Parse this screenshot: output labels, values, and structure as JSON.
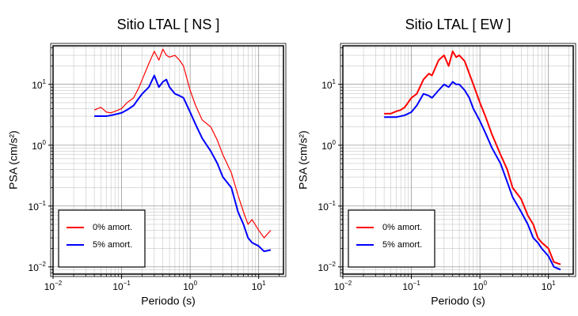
{
  "chart_data": [
    {
      "type": "line",
      "title": "Sitio LTAL [ NS ]",
      "x_label": "Periodo (s)",
      "y_label": "PSA (cm/s²)",
      "log_x": true,
      "log_y": true,
      "grid": true,
      "legend": "lower left",
      "xlim": [
        0.01,
        23
      ],
      "ylim": [
        0.0076,
        43
      ],
      "xticks": [
        {
          "value": 0.01,
          "label": "10",
          "power": "−2"
        },
        {
          "value": 0.1,
          "label": "10",
          "power": "−1"
        },
        {
          "value": 1,
          "label": "10",
          "power": "0"
        },
        {
          "value": 10,
          "label": "10",
          "power": "1"
        }
      ],
      "yticks": [
        {
          "value": 0.01,
          "label": "10",
          "power": "−2"
        },
        {
          "value": 0.1,
          "label": "10",
          "power": "−1"
        },
        {
          "value": 1,
          "label": "10",
          "power": "0"
        },
        {
          "value": 10,
          "label": "10",
          "power": "1"
        }
      ],
      "x": [
        0.04,
        0.05,
        0.06,
        0.07,
        0.08,
        0.1,
        0.12,
        0.15,
        0.18,
        0.2,
        0.25,
        0.3,
        0.35,
        0.4,
        0.45,
        0.5,
        0.6,
        0.7,
        0.8,
        1.0,
        1.2,
        1.5,
        2,
        2.5,
        3,
        4,
        5,
        6,
        7,
        8,
        10,
        12,
        15
      ],
      "series": [
        {
          "name": "0% amort.",
          "color": "#ff0000",
          "width": 1.2,
          "values": [
            3.8,
            4.2,
            3.5,
            3.4,
            3.6,
            4.0,
            5,
            6,
            9,
            12,
            22,
            35,
            25,
            38,
            30,
            28,
            30,
            25,
            20,
            8,
            4.5,
            2.6,
            2.0,
            1.2,
            0.7,
            0.35,
            0.15,
            0.08,
            0.05,
            0.06,
            0.04,
            0.03,
            0.04
          ]
        },
        {
          "name": "5% amort.",
          "color": "#0000ff",
          "width": 2,
          "values": [
            3.0,
            3.0,
            3.0,
            3.1,
            3.2,
            3.4,
            3.8,
            4.5,
            6,
            7,
            9,
            14,
            9,
            11,
            12,
            9,
            7,
            6.5,
            6,
            3.5,
            2.2,
            1.3,
            0.8,
            0.5,
            0.3,
            0.2,
            0.08,
            0.05,
            0.03,
            0.025,
            0.022,
            0.018,
            0.019
          ]
        }
      ]
    },
    {
      "type": "line",
      "title": "Sitio LTAL [ EW ]",
      "x_label": "Periodo (s)",
      "y_label": "PSA (cm/s²)",
      "log_x": true,
      "log_y": true,
      "grid": true,
      "legend": "lower left",
      "xlim": [
        0.01,
        23
      ],
      "ylim": [
        0.0076,
        43
      ],
      "xticks": [
        {
          "value": 0.01,
          "label": "10",
          "power": "−2"
        },
        {
          "value": 0.1,
          "label": "10",
          "power": "−1"
        },
        {
          "value": 1,
          "label": "10",
          "power": "0"
        },
        {
          "value": 10,
          "label": "10",
          "power": "1"
        }
      ],
      "yticks": [
        {
          "value": 0.01,
          "label": "10",
          "power": "−2"
        },
        {
          "value": 0.1,
          "label": "10",
          "power": "−1"
        },
        {
          "value": 1,
          "label": "10",
          "power": "0"
        },
        {
          "value": 10,
          "label": "10",
          "power": "1"
        }
      ],
      "x": [
        0.04,
        0.05,
        0.06,
        0.07,
        0.08,
        0.1,
        0.12,
        0.15,
        0.18,
        0.2,
        0.25,
        0.3,
        0.35,
        0.4,
        0.45,
        0.5,
        0.6,
        0.7,
        0.8,
        1.0,
        1.2,
        1.5,
        2,
        2.5,
        3,
        4,
        5,
        6,
        7,
        8,
        10,
        12,
        15
      ],
      "series": [
        {
          "name": "0% amort.",
          "color": "#ff0000",
          "width": 2,
          "values": [
            3.3,
            3.3,
            3.6,
            3.8,
            4.2,
            6,
            7,
            12,
            15,
            14,
            25,
            30,
            20,
            35,
            28,
            30,
            24,
            15,
            10,
            5,
            3,
            1.5,
            0.7,
            0.4,
            0.2,
            0.13,
            0.07,
            0.05,
            0.03,
            0.025,
            0.02,
            0.012,
            0.011
          ]
        },
        {
          "name": "5% amort.",
          "color": "#0000ff",
          "width": 2,
          "values": [
            2.9,
            2.9,
            2.9,
            3.0,
            3.1,
            3.5,
            4.5,
            7,
            6.5,
            6,
            8,
            10,
            9,
            11,
            10,
            10,
            8,
            6,
            4,
            2.5,
            1.6,
            0.9,
            0.5,
            0.25,
            0.14,
            0.08,
            0.05,
            0.03,
            0.025,
            0.02,
            0.015,
            0.01,
            0.009
          ]
        }
      ]
    }
  ]
}
